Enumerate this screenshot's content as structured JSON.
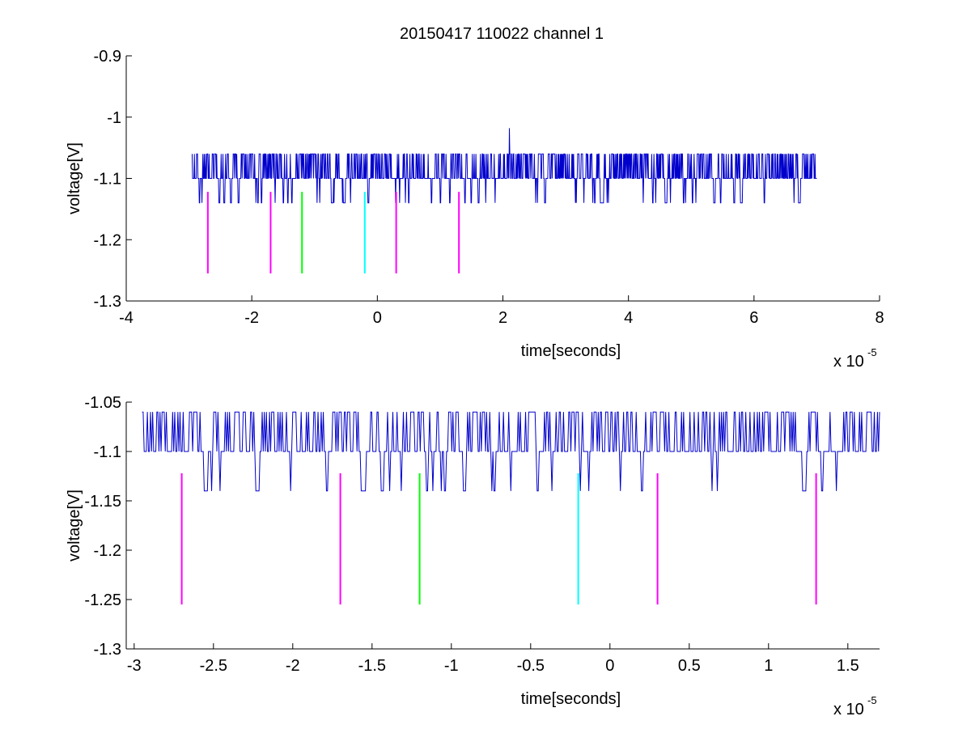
{
  "figure": {
    "title": "20150417 110022 channel 1",
    "background": "#ffffff"
  },
  "chart_data": [
    {
      "type": "line",
      "title": "20150417 110022 channel 1",
      "xlabel": "time[seconds]",
      "ylabel": "voltage[V]",
      "x_multiplier_label": "x 10",
      "x_multiplier_exponent": "-5",
      "xlim": [
        -4,
        8
      ],
      "ylim": [
        -1.3,
        -0.9
      ],
      "x_ticks": [
        -4,
        -2,
        0,
        2,
        4,
        6,
        8
      ],
      "x_tick_labels": [
        "-4",
        "-2",
        "0",
        "2",
        "4",
        "6",
        "8"
      ],
      "y_ticks": [
        -1.3,
        -1.2,
        -1.1,
        -1.0,
        -0.9
      ],
      "y_tick_labels": [
        "-1.3",
        "-1.2",
        "-1.1",
        "-1",
        "-0.9"
      ],
      "grid": false,
      "series": [
        {
          "color": "#0000cc",
          "x_range": [
            -2.95,
            7.0
          ],
          "baseline": -1.1,
          "levels": [
            -1.06,
            -1.1,
            -1.14
          ],
          "spike": {
            "x": 2.1,
            "y": -1.018
          }
        }
      ],
      "markers": [
        {
          "x": -2.7,
          "y_top": -1.122,
          "y_bottom": -1.255,
          "color": "#ff00ff"
        },
        {
          "x": -1.7,
          "y_top": -1.122,
          "y_bottom": -1.255,
          "color": "#ff00ff"
        },
        {
          "x": -1.2,
          "y_top": -1.122,
          "y_bottom": -1.255,
          "color": "#00ff00"
        },
        {
          "x": -0.2,
          "y_top": -1.122,
          "y_bottom": -1.255,
          "color": "#00ffff"
        },
        {
          "x": 0.3,
          "y_top": -1.122,
          "y_bottom": -1.255,
          "color": "#ff00ff"
        },
        {
          "x": 1.3,
          "y_top": -1.122,
          "y_bottom": -1.255,
          "color": "#ff00ff"
        }
      ]
    },
    {
      "type": "line",
      "xlabel": "time[seconds]",
      "ylabel": "voltage[V]",
      "x_multiplier_label": "x 10",
      "x_multiplier_exponent": "-5",
      "xlim": [
        -3.05,
        1.7
      ],
      "ylim": [
        -1.3,
        -1.05
      ],
      "x_ticks": [
        -3,
        -2.5,
        -2,
        -1.5,
        -1,
        -0.5,
        0,
        0.5,
        1,
        1.5
      ],
      "x_tick_labels": [
        "-3",
        "-2.5",
        "-2",
        "-1.5",
        "-1",
        "-0.5",
        "0",
        "0.5",
        "1",
        "1.5"
      ],
      "y_ticks": [
        -1.3,
        -1.25,
        -1.2,
        -1.15,
        -1.1,
        -1.05
      ],
      "y_tick_labels": [
        "-1.3",
        "-1.25",
        "-1.2",
        "-1.15",
        "-1.1",
        "-1.05"
      ],
      "grid": false,
      "series": [
        {
          "color": "#0000cc",
          "x_range": [
            -2.95,
            1.7
          ],
          "baseline": -1.1,
          "levels": [
            -1.06,
            -1.1,
            -1.14
          ]
        }
      ],
      "markers": [
        {
          "x": -2.7,
          "y_top": -1.122,
          "y_bottom": -1.255,
          "color": "#ff00ff"
        },
        {
          "x": -1.7,
          "y_top": -1.122,
          "y_bottom": -1.255,
          "color": "#ff00ff"
        },
        {
          "x": -1.2,
          "y_top": -1.122,
          "y_bottom": -1.255,
          "color": "#00ff00"
        },
        {
          "x": -0.2,
          "y_top": -1.122,
          "y_bottom": -1.255,
          "color": "#00ffff"
        },
        {
          "x": 0.3,
          "y_top": -1.122,
          "y_bottom": -1.255,
          "color": "#ff00ff"
        },
        {
          "x": 1.3,
          "y_top": -1.122,
          "y_bottom": -1.255,
          "color": "#ff00ff"
        }
      ]
    }
  ]
}
